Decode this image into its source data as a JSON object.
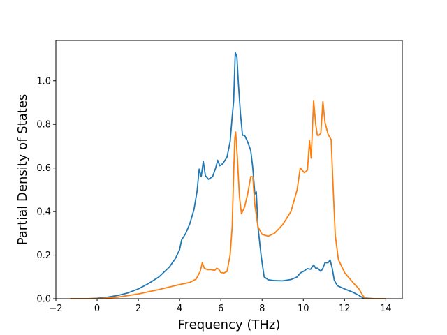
{
  "chart_data": {
    "type": "line",
    "title": "",
    "xlabel": "Frequency (THz)",
    "ylabel": "Partial Density of States",
    "xlim": [
      -2.0,
      14.8
    ],
    "ylim": [
      0.0,
      1.185
    ],
    "xticks": [
      -2,
      0,
      2,
      4,
      6,
      8,
      10,
      12,
      14
    ],
    "xtick_labels": [
      "−2",
      "0",
      "2",
      "4",
      "6",
      "8",
      "10",
      "12",
      "14"
    ],
    "yticks": [
      0.0,
      0.2,
      0.4,
      0.6,
      0.8,
      1.0
    ],
    "ytick_labels": [
      "0.0",
      "0.2",
      "0.4",
      "0.6",
      "0.8",
      "1.0"
    ],
    "grid": false,
    "legend": "none",
    "series": [
      {
        "color": "#1f77b4",
        "x": [
          -1.3,
          -0.5,
          0.0,
          0.5,
          1.0,
          1.5,
          2.0,
          2.5,
          3.0,
          3.5,
          3.8,
          4.0,
          4.1,
          4.3,
          4.5,
          4.7,
          4.85,
          4.95,
          5.05,
          5.15,
          5.25,
          5.4,
          5.6,
          5.75,
          5.85,
          5.95,
          6.1,
          6.3,
          6.45,
          6.55,
          6.62,
          6.7,
          6.78,
          6.85,
          6.95,
          7.05,
          7.15,
          7.3,
          7.45,
          7.55,
          7.65,
          7.72,
          7.8,
          7.95,
          8.1,
          8.3,
          8.6,
          9.0,
          9.4,
          9.7,
          9.85,
          10.0,
          10.2,
          10.35,
          10.5,
          10.6,
          10.7,
          10.85,
          10.95,
          11.05,
          11.2,
          11.3,
          11.4,
          11.5,
          11.65,
          12.0,
          12.4,
          12.7,
          12.9,
          13.5,
          14.0
        ],
        "values": [
          0.0,
          0.0,
          0.002,
          0.007,
          0.015,
          0.027,
          0.045,
          0.07,
          0.1,
          0.145,
          0.185,
          0.225,
          0.27,
          0.3,
          0.345,
          0.41,
          0.495,
          0.595,
          0.56,
          0.63,
          0.565,
          0.548,
          0.56,
          0.6,
          0.635,
          0.61,
          0.62,
          0.65,
          0.72,
          0.835,
          0.905,
          1.13,
          1.11,
          0.99,
          0.85,
          0.75,
          0.75,
          0.72,
          0.68,
          0.6,
          0.48,
          0.49,
          0.33,
          0.2,
          0.1,
          0.087,
          0.083,
          0.082,
          0.088,
          0.1,
          0.118,
          0.125,
          0.138,
          0.135,
          0.155,
          0.14,
          0.14,
          0.125,
          0.14,
          0.165,
          0.165,
          0.178,
          0.14,
          0.085,
          0.06,
          0.045,
          0.03,
          0.015,
          0.003,
          0.0,
          0.0
        ]
      },
      {
        "color": "#ff7f0e",
        "x": [
          -1.3,
          0.0,
          1.0,
          2.0,
          3.0,
          4.0,
          4.5,
          4.8,
          5.0,
          5.1,
          5.2,
          5.35,
          5.5,
          5.7,
          5.8,
          5.9,
          6.0,
          6.15,
          6.3,
          6.45,
          6.55,
          6.63,
          6.68,
          6.72,
          6.8,
          6.9,
          7.0,
          7.15,
          7.3,
          7.45,
          7.55,
          7.65,
          7.8,
          8.0,
          8.3,
          8.6,
          9.0,
          9.4,
          9.7,
          9.85,
          9.95,
          10.05,
          10.2,
          10.3,
          10.38,
          10.45,
          10.5,
          10.6,
          10.68,
          10.75,
          10.85,
          10.95,
          11.05,
          11.2,
          11.35,
          11.45,
          11.55,
          11.7,
          12.0,
          12.4,
          12.7,
          12.85,
          13.0,
          14.0
        ],
        "values": [
          0.0,
          0.0,
          0.007,
          0.022,
          0.042,
          0.065,
          0.075,
          0.09,
          0.125,
          0.165,
          0.14,
          0.133,
          0.134,
          0.13,
          0.14,
          0.135,
          0.12,
          0.118,
          0.125,
          0.2,
          0.33,
          0.6,
          0.74,
          0.765,
          0.65,
          0.47,
          0.39,
          0.42,
          0.48,
          0.56,
          0.56,
          0.43,
          0.33,
          0.295,
          0.287,
          0.3,
          0.34,
          0.4,
          0.5,
          0.6,
          0.59,
          0.578,
          0.59,
          0.725,
          0.645,
          0.8,
          0.91,
          0.8,
          0.75,
          0.75,
          0.76,
          0.905,
          0.81,
          0.755,
          0.73,
          0.5,
          0.29,
          0.18,
          0.12,
          0.075,
          0.045,
          0.02,
          0.0,
          0.0
        ]
      }
    ]
  }
}
